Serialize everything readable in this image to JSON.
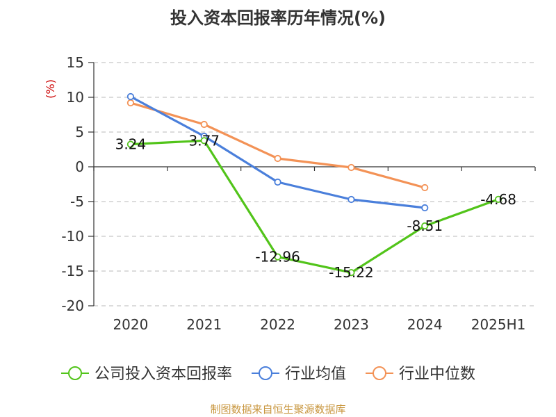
{
  "chart_data": {
    "type": "line",
    "title": "投入资本回报率历年情况(%)",
    "ylabel": "(%)",
    "xlabel": "",
    "categories": [
      "2020",
      "2021",
      "2022",
      "2023",
      "2024",
      "2025H1"
    ],
    "ylim": [
      -20,
      15
    ],
    "yticks": [
      15,
      10,
      5,
      0,
      -5,
      -10,
      -15,
      -20
    ],
    "grid": true,
    "legend_position": "bottom",
    "series": [
      {
        "name": "公司投入资本回报率",
        "color": "#52c41a",
        "values": [
          3.24,
          3.77,
          -12.96,
          -15.22,
          -8.51,
          -4.68
        ],
        "labels": [
          "3.24",
          "3.77",
          "-12.96",
          "-15.22",
          "-8.51",
          "-4.68"
        ]
      },
      {
        "name": "行业均值",
        "color": "#4a7fdb",
        "values": [
          10.1,
          4.4,
          -2.2,
          -4.7,
          -5.9,
          null
        ]
      },
      {
        "name": "行业中位数",
        "color": "#f39256",
        "values": [
          9.2,
          6.1,
          1.2,
          -0.1,
          -3.0,
          null
        ]
      }
    ]
  },
  "ylabel_color": "#cc0000",
  "source_text": "制图数据来自恒生聚源数据库",
  "source_color": "#c8963e"
}
